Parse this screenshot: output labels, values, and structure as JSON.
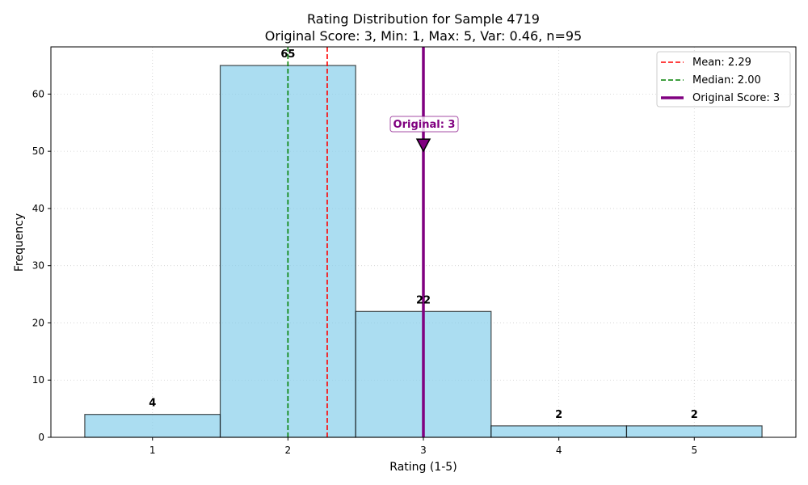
{
  "chart_data": {
    "type": "bar",
    "title": "Rating Distribution for Sample 4719",
    "subtitle": "Original Score: 3, Min: 1, Max: 5, Var: 0.46, n=95",
    "xlabel": "Rating (1-5)",
    "ylabel": "Frequency",
    "categories": [
      "1",
      "2",
      "3",
      "4",
      "5"
    ],
    "x": [
      1,
      2,
      3,
      4,
      5
    ],
    "values": [
      4,
      65,
      22,
      2,
      2
    ],
    "data_labels": [
      "4",
      "65",
      "22",
      "2",
      "2"
    ],
    "xlim": [
      0.25,
      5.75
    ],
    "ylim": [
      0,
      68.25
    ],
    "yticks": [
      0,
      10,
      20,
      30,
      40,
      50,
      60
    ],
    "grid": true,
    "bar_color": "#87ceeb",
    "bar_edge_color": "#000000",
    "reference_lines": [
      {
        "label": "Mean: 2.29",
        "x": 2.29,
        "color": "#ff0000",
        "style": "dashed"
      },
      {
        "label": "Median: 2.00",
        "x": 2.0,
        "color": "#008000",
        "style": "dashed"
      },
      {
        "label": "Original Score: 3",
        "x": 3,
        "color": "#800080",
        "style": "solid"
      }
    ],
    "annotation": {
      "text": "Original: 3",
      "x": 3,
      "y": 51,
      "color": "#800080"
    },
    "legend": {
      "position": "top-right"
    }
  }
}
